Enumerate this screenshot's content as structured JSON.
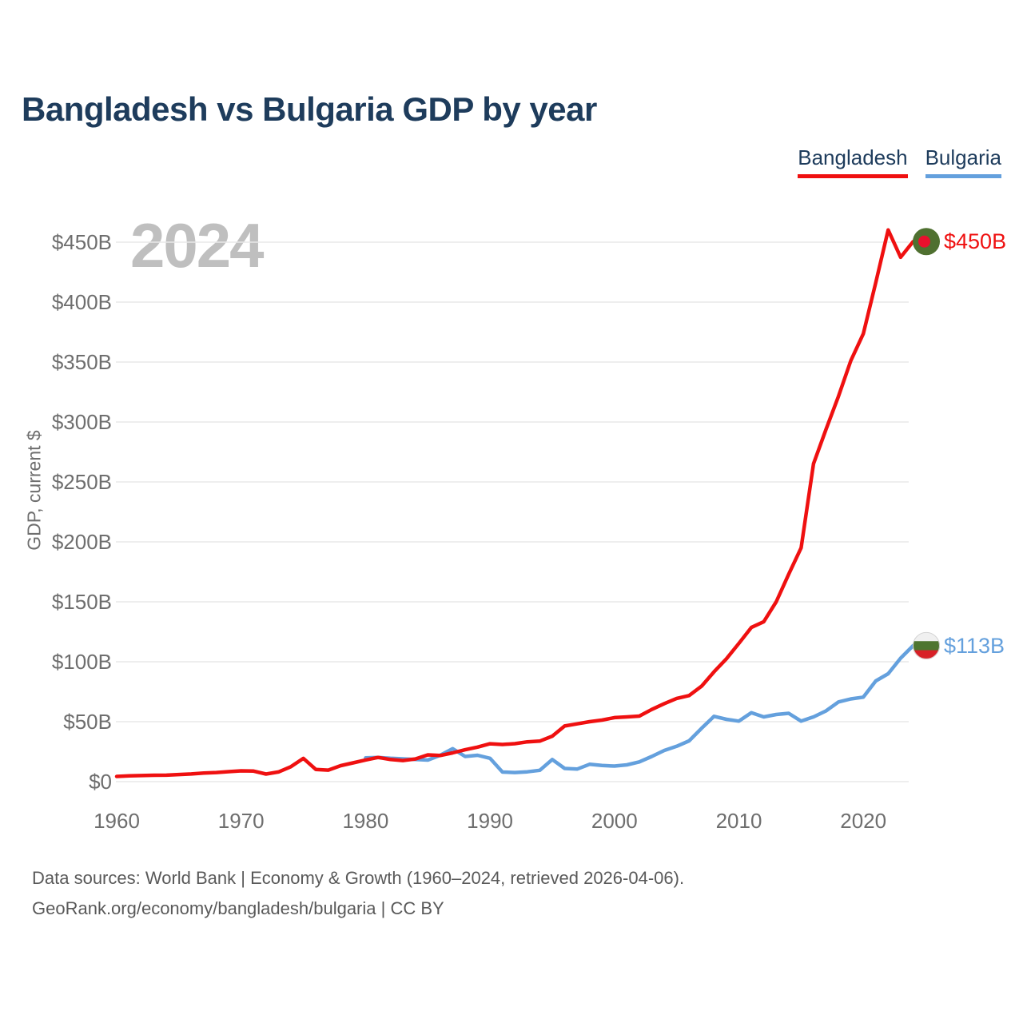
{
  "header": {
    "title": "Bangladesh vs Bulgaria GDP by year"
  },
  "legend": {
    "items": [
      {
        "label": "Bangladesh",
        "color": "#ef1010"
      },
      {
        "label": "Bulgaria",
        "color": "#64a0dd"
      }
    ]
  },
  "watermark": {
    "year": "2024"
  },
  "footer": {
    "line1": "Data sources: World Bank | Economy & Growth (1960–2024, retrieved 2026-04-06).",
    "line2": "GeoRank.org/economy/bangladesh/bulgaria | CC BY"
  },
  "chart_data": {
    "type": "line",
    "title": "Bangladesh vs Bulgaria GDP by year",
    "xlabel": "",
    "ylabel": "GDP, current $",
    "units": "billions of current US$",
    "xlim": [
      1960,
      2024
    ],
    "ylim": [
      0,
      475
    ],
    "grid": "horizontal-only",
    "legend_position": "top-right",
    "y_ticks": [
      {
        "value": 0,
        "label": "$0"
      },
      {
        "value": 50,
        "label": "$50B"
      },
      {
        "value": 100,
        "label": "$100B"
      },
      {
        "value": 150,
        "label": "$150B"
      },
      {
        "value": 200,
        "label": "$200B"
      },
      {
        "value": 250,
        "label": "$250B"
      },
      {
        "value": 300,
        "label": "$300B"
      },
      {
        "value": 350,
        "label": "$350B"
      },
      {
        "value": 400,
        "label": "$400B"
      },
      {
        "value": 450,
        "label": "$450B"
      }
    ],
    "x_ticks": [
      {
        "value": 1960,
        "label": "1960"
      },
      {
        "value": 1970,
        "label": "1970"
      },
      {
        "value": 1980,
        "label": "1980"
      },
      {
        "value": 1990,
        "label": "1990"
      },
      {
        "value": 2000,
        "label": "2000"
      },
      {
        "value": 2010,
        "label": "2010"
      },
      {
        "value": 2020,
        "label": "2020"
      }
    ],
    "series": [
      {
        "name": "Bangladesh",
        "color": "#ef1010",
        "flag": "bangladesh",
        "end_label": "$450B",
        "x_start": 1960,
        "x_step": 1,
        "values": [
          4.3,
          4.8,
          5.1,
          5.3,
          5.4,
          5.9,
          6.4,
          7.2,
          7.6,
          8.3,
          9.0,
          8.8,
          6.3,
          8.1,
          12.5,
          19.4,
          10.2,
          9.6,
          13.3,
          15.7,
          18.1,
          20.2,
          18.5,
          17.6,
          18.9,
          22.3,
          21.8,
          24.0,
          26.6,
          28.8,
          31.6,
          31.0,
          31.7,
          33.2,
          33.8,
          37.9,
          46.4,
          48.2,
          50.0,
          51.3,
          53.4,
          54.0,
          54.7,
          60.2,
          65.1,
          69.4,
          71.8,
          79.6,
          91.6,
          102.5,
          115.3,
          128.6,
          133.4,
          150.0,
          172.9,
          195.1,
          265.2,
          293.8,
          321.4,
          351.2,
          373.6,
          416.3,
          460.2,
          437.4,
          450.5
        ]
      },
      {
        "name": "Bulgaria",
        "color": "#64a0dd",
        "flag": "bulgaria",
        "end_label": "$113B",
        "x_start": 1980,
        "x_step": 1,
        "values": [
          19.8,
          20.2,
          19.5,
          19.0,
          18.5,
          18.0,
          22.0,
          27.5,
          21.0,
          22.0,
          19.5,
          8.0,
          7.6,
          8.2,
          9.5,
          18.5,
          11.0,
          10.5,
          14.5,
          13.5,
          13.0,
          14.0,
          16.5,
          21.0,
          26.0,
          29.5,
          34.0,
          44.5,
          54.5,
          52.0,
          50.5,
          57.5,
          54.0,
          56.0,
          57.0,
          50.5,
          54.0,
          59.0,
          66.5,
          69.0,
          70.5,
          84.0,
          90.0,
          103.0,
          113.4
        ]
      }
    ],
    "flag_colors": {
      "bangladesh": {
        "field": "#4f7030",
        "disc": "#e8112d"
      },
      "bulgaria": {
        "white": "#f0f0f0",
        "green": "#4e7530",
        "red": "#d81f26"
      }
    },
    "gridline_color": "#e8e8e8"
  }
}
